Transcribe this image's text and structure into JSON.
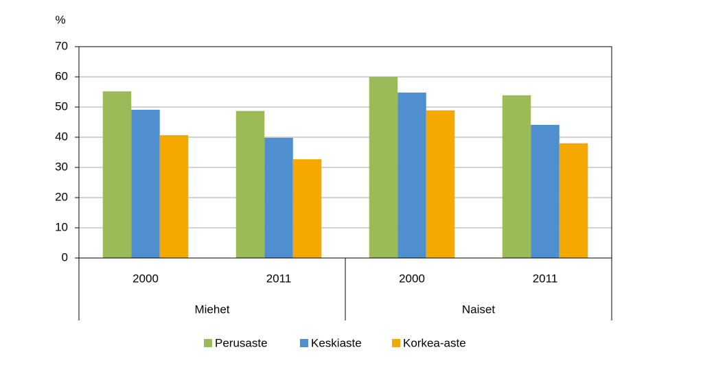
{
  "chart_data": {
    "type": "bar",
    "y_label": "%",
    "groups": [
      {
        "name": "Miehet",
        "categories": [
          "2000",
          "2011"
        ]
      },
      {
        "name": "Naiset",
        "categories": [
          "2000",
          "2011"
        ]
      }
    ],
    "series": [
      {
        "name": "Perusaste",
        "color": "#9bbb59",
        "values": [
          55.2,
          48.7,
          59.9,
          53.9
        ]
      },
      {
        "name": "Keskiaste",
        "color": "#4f8fd0",
        "values": [
          49.1,
          39.8,
          54.8,
          44.1
        ]
      },
      {
        "name": "Korkea-aste",
        "color": "#f5a800",
        "values": [
          40.7,
          32.7,
          48.9,
          38.0
        ]
      }
    ],
    "ylim": [
      0,
      70
    ],
    "yticks": [
      0,
      10,
      20,
      30,
      40,
      50,
      60,
      70
    ],
    "grid": true,
    "legend": "bottom"
  }
}
